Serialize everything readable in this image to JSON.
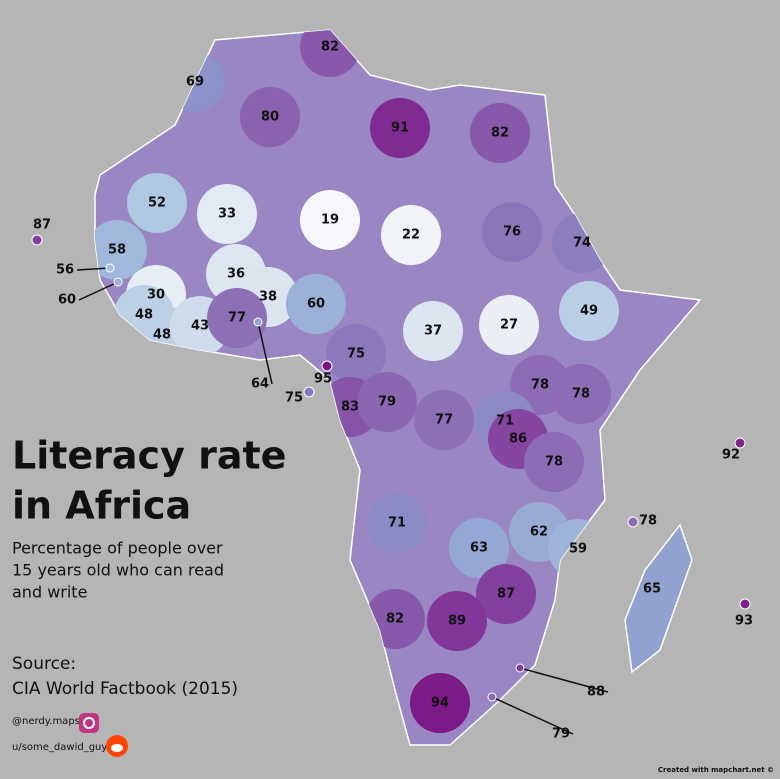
{
  "title": [
    "Literacy rate",
    "in Africa"
  ],
  "subtitle": [
    "Percentage of people over",
    "15 years old who can read",
    "and write"
  ],
  "source": [
    "Source:",
    "CIA World Factbook (2015)"
  ],
  "credits": {
    "instagram": "@nerdy.maps",
    "reddit": "u/some_dawid_guy",
    "tool": "Created with mapchart.net ©"
  },
  "labels": [
    82,
    69,
    80,
    91,
    82,
    87,
    52,
    33,
    19,
    22,
    76,
    74,
    58,
    56,
    60,
    36,
    30,
    38,
    60,
    49,
    37,
    27,
    48,
    48,
    43,
    77,
    75,
    95,
    64,
    75,
    83,
    79,
    78,
    78,
    77,
    71,
    86,
    92,
    78,
    78,
    71,
    62,
    63,
    59,
    65,
    87,
    82,
    89,
    93,
    88,
    94,
    79
  ]
}
